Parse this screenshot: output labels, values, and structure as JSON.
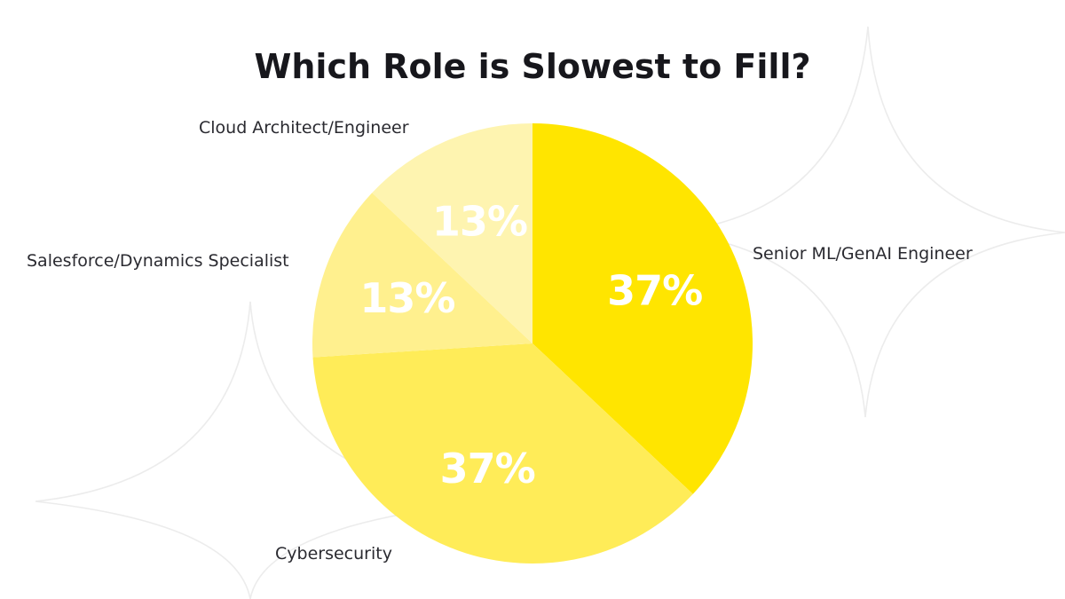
{
  "chart_data": {
    "type": "pie",
    "title": "Which Role is Slowest to Fill?",
    "unit": "%",
    "slices": [
      {
        "label": "Senior ML/GenAI Engineer",
        "value": 37,
        "display": "37%",
        "color": "#FFE500"
      },
      {
        "label": "Cybersecurity",
        "value": 37,
        "display": "37%",
        "color": "#FFEC58"
      },
      {
        "label": "Salesforce/Dynamics Specialist",
        "value": 13,
        "display": "13%",
        "color": "#FFF08E"
      },
      {
        "label": "Cloud Architect/Engineer",
        "value": 13,
        "display": "13%",
        "color": "#FEF4B0"
      }
    ],
    "legend": "none",
    "labels": "outside"
  },
  "style": {
    "title_color": "#17171c",
    "label_color": "#2a2a30",
    "value_label_color": "#ffffff",
    "background": "#ffffff"
  }
}
